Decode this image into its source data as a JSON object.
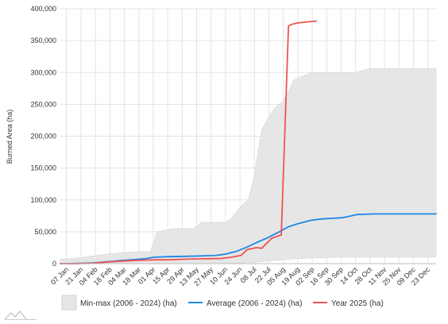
{
  "chart_data": {
    "type": "area",
    "title": "",
    "xlabel": "",
    "ylabel": "Burned Area (ha)",
    "ylim": [
      0,
      400000
    ],
    "grid": true,
    "legend_position": "bottom",
    "y_ticks": [
      "0",
      "50,000",
      "100,000",
      "150,000",
      "200,000",
      "250,000",
      "300,000",
      "350,000",
      "400,000"
    ],
    "x_ticks": [
      "07 Jan",
      "21 Jan",
      "04 Feb",
      "18 Feb",
      "04 Mar",
      "18 Mar",
      "01 Apr",
      "15 Apr",
      "29 Apr",
      "13 May",
      "27 May",
      "10 Jun",
      "24 Jun",
      "08 Jul",
      "22 Jul",
      "05 Aug",
      "19 Aug",
      "02 Sep",
      "16 Sep",
      "30 Sep",
      "14 Oct",
      "28 Oct",
      "11 Nov",
      "25 Nov",
      "09 Dec",
      "23 Dec"
    ],
    "x_range": [
      "01 Jan",
      "31 Dec"
    ],
    "series": [
      {
        "name": "Min-max (2006 - 2024) (ha)",
        "kind": "band",
        "color": "#e6e6e6",
        "x": [
          "01 Jan",
          "10 Jan",
          "20 Jan",
          "01 Feb",
          "15 Feb",
          "28 Feb",
          "10 Mar",
          "25 Mar",
          "29 Mar",
          "05 Apr",
          "20 Apr",
          "10 May",
          "18 May",
          "05 Jun",
          "10 Jun",
          "15 Jun",
          "25 Jun",
          "02 Jul",
          "08 Jul",
          "15 Jul",
          "22 Jul",
          "28 Jul",
          "05 Aug",
          "10 Aug",
          "15 Aug",
          "25 Aug",
          "01 Sep",
          "15 Sep",
          "01 Oct",
          "14 Oct",
          "25 Oct",
          "01 Nov",
          "15 Nov",
          "01 Dec",
          "15 Dec",
          "31 Dec"
        ],
        "low": [
          0,
          0,
          0,
          0,
          0,
          0,
          0,
          0,
          0,
          0,
          0,
          0,
          0,
          0,
          0,
          500,
          1000,
          1500,
          2000,
          3000,
          4000,
          5000,
          6000,
          7000,
          7500,
          8000,
          9000,
          9500,
          10000,
          10000,
          10000,
          10000,
          10000,
          10000,
          10000,
          10000
        ],
        "high": [
          7000,
          8000,
          9000,
          12000,
          15000,
          17000,
          18000,
          19000,
          19000,
          50000,
          55000,
          55000,
          65000,
          65000,
          65000,
          70000,
          90000,
          100000,
          140000,
          210000,
          230000,
          245000,
          255000,
          270000,
          288000,
          295000,
          300000,
          300000,
          300000,
          300000,
          305000,
          306000,
          306000,
          306000,
          306000,
          306000
        ]
      },
      {
        "name": "Average (2006 - 2024) (ha)",
        "kind": "line",
        "color": "#1e88e5",
        "x": [
          "01 Jan",
          "15 Jan",
          "01 Feb",
          "15 Feb",
          "01 Mar",
          "15 Mar",
          "25 Mar",
          "01 Apr",
          "15 Apr",
          "01 May",
          "15 May",
          "01 Jun",
          "10 Jun",
          "20 Jun",
          "01 Jul",
          "10 Jul",
          "20 Jul",
          "01 Aug",
          "10 Aug",
          "20 Aug",
          "01 Sep",
          "10 Sep",
          "20 Sep",
          "01 Oct",
          "10 Oct",
          "15 Oct",
          "01 Nov",
          "01 Dec",
          "31 Dec"
        ],
        "values": [
          0,
          200,
          1000,
          3000,
          5000,
          6500,
          8000,
          10000,
          11000,
          11500,
          12000,
          13000,
          15000,
          19000,
          26000,
          33000,
          40000,
          50000,
          58000,
          63000,
          68000,
          70000,
          71000,
          72000,
          75000,
          77000,
          78000,
          78000,
          78000
        ]
      },
      {
        "name": "Year 2025 (ha)",
        "kind": "line",
        "color": "#ef5350",
        "x": [
          "01 Jan",
          "15 Jan",
          "01 Feb",
          "15 Feb",
          "01 Mar",
          "15 Mar",
          "01 Apr",
          "15 Apr",
          "01 May",
          "15 May",
          "01 Jun",
          "05 Jun",
          "15 Jun",
          "25 Jun",
          "01 Jul",
          "10 Jul",
          "15 Jul",
          "25 Jul",
          "03 Aug",
          "10 Aug",
          "14 Aug",
          "20 Aug",
          "01 Sep",
          "06 Sep"
        ],
        "values": [
          0,
          0,
          500,
          2500,
          4000,
          5000,
          6000,
          6000,
          7000,
          7500,
          8000,
          8000,
          10000,
          13000,
          22000,
          25000,
          24000,
          40000,
          45000,
          373000,
          376000,
          378000,
          380000,
          380500
        ]
      }
    ]
  },
  "logo": {
    "name": "mountain-logo"
  }
}
